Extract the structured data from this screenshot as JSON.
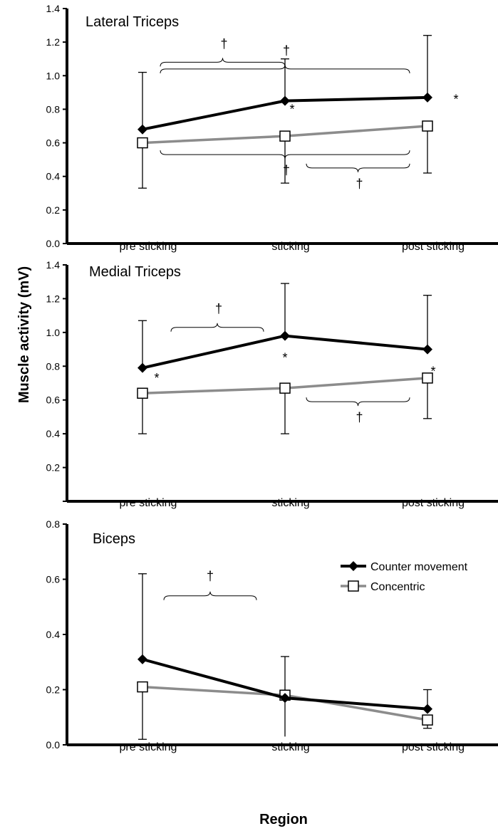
{
  "ylabel": "Muscle activity (mV)",
  "xlabel": "Region",
  "chart_data": [
    {
      "type": "line",
      "title": "Lateral Triceps",
      "categories": [
        "pre sticking",
        "sticking",
        "post sticking"
      ],
      "ylim": [
        0,
        1.4
      ],
      "yticks": [
        "0.0",
        "0.2",
        "0.4",
        "0.6",
        "0.8",
        "1.0",
        "1.2",
        "1.4"
      ],
      "series": [
        {
          "name": "Counter movement",
          "values": [
            0.68,
            0.85,
            0.87
          ],
          "err_high": [
            1.02,
            1.1,
            1.24
          ],
          "err_low": [
            0.68,
            0.85,
            0.87
          ]
        },
        {
          "name": "Concentric",
          "values": [
            0.6,
            0.64,
            0.7
          ],
          "err_high": [
            0.6,
            0.64,
            0.7
          ],
          "err_low": [
            0.33,
            0.36,
            0.42
          ]
        }
      ],
      "annotations": [
        {
          "text": "†",
          "from": 0,
          "to": 1,
          "y": 1.08,
          "side": "above"
        },
        {
          "text": "†",
          "from": 0,
          "to": 2,
          "y": 1.04,
          "side": "above"
        },
        {
          "text": "†",
          "from": 0,
          "to": 2,
          "y": 0.53,
          "side": "below"
        },
        {
          "text": "†",
          "from": 1.15,
          "to": 2,
          "y": 0.45,
          "side": "below"
        }
      ],
      "stars": [
        {
          "text": "*",
          "x": 1.05,
          "y": 0.8
        },
        {
          "text": "*",
          "x": 2.4,
          "y": 0.86
        }
      ]
    },
    {
      "type": "line",
      "title": "Medial Triceps",
      "categories": [
        "pre sticking",
        "sticking",
        "post sticking"
      ],
      "ylim": [
        0,
        1.4
      ],
      "yticks": [
        "",
        "0.2",
        "0.4",
        "0.6",
        "0.8",
        "1.0",
        "1.2",
        "1.4"
      ],
      "series": [
        {
          "name": "Counter movement",
          "values": [
            0.79,
            0.98,
            0.9
          ],
          "err_high": [
            1.07,
            1.29,
            1.22
          ],
          "err_low": [
            0.79,
            0.98,
            0.9
          ]
        },
        {
          "name": "Concentric",
          "values": [
            0.64,
            0.67,
            0.73
          ],
          "err_high": [
            0.64,
            0.67,
            0.73
          ],
          "err_low": [
            0.4,
            0.4,
            0.49
          ]
        }
      ],
      "annotations": [
        {
          "text": "†",
          "from": 0.2,
          "to": 0.85,
          "y": 1.03,
          "side": "above"
        },
        {
          "text": "†",
          "from": 1.15,
          "to": 2,
          "y": 0.59,
          "side": "below"
        }
      ],
      "stars": [
        {
          "text": "*",
          "x": 0.1,
          "y": 0.73
        },
        {
          "text": "*",
          "x": 1.0,
          "y": 0.85
        },
        {
          "text": "*",
          "x": 2.08,
          "y": 0.77
        }
      ]
    },
    {
      "type": "line",
      "title": "Biceps",
      "categories": [
        "pre sticking",
        "sticking",
        "post sticking"
      ],
      "ylim": [
        0,
        0.8
      ],
      "yticks": [
        "0.0",
        "0.2",
        "0.4",
        "0.6",
        "0.8"
      ],
      "series": [
        {
          "name": "Counter movement",
          "values": [
            0.31,
            0.17,
            0.13
          ],
          "err_high": [
            0.62,
            0.17,
            0.2
          ],
          "err_low": [
            0.31,
            0.17,
            0.13
          ]
        },
        {
          "name": "Concentric",
          "values": [
            0.21,
            0.18,
            0.09
          ],
          "err_high": [
            0.21,
            0.32,
            0.09
          ],
          "err_low": [
            0.02,
            0.03,
            0.06
          ]
        }
      ],
      "annotations": [
        {
          "text": "†",
          "from": 0.15,
          "to": 0.8,
          "y": 0.54,
          "side": "above",
          "small": true
        }
      ],
      "stars": [],
      "legend": "top-right"
    }
  ],
  "colors": {
    "counter": "#000000",
    "concentric": "#8c8c8c",
    "axis": "#000000"
  }
}
